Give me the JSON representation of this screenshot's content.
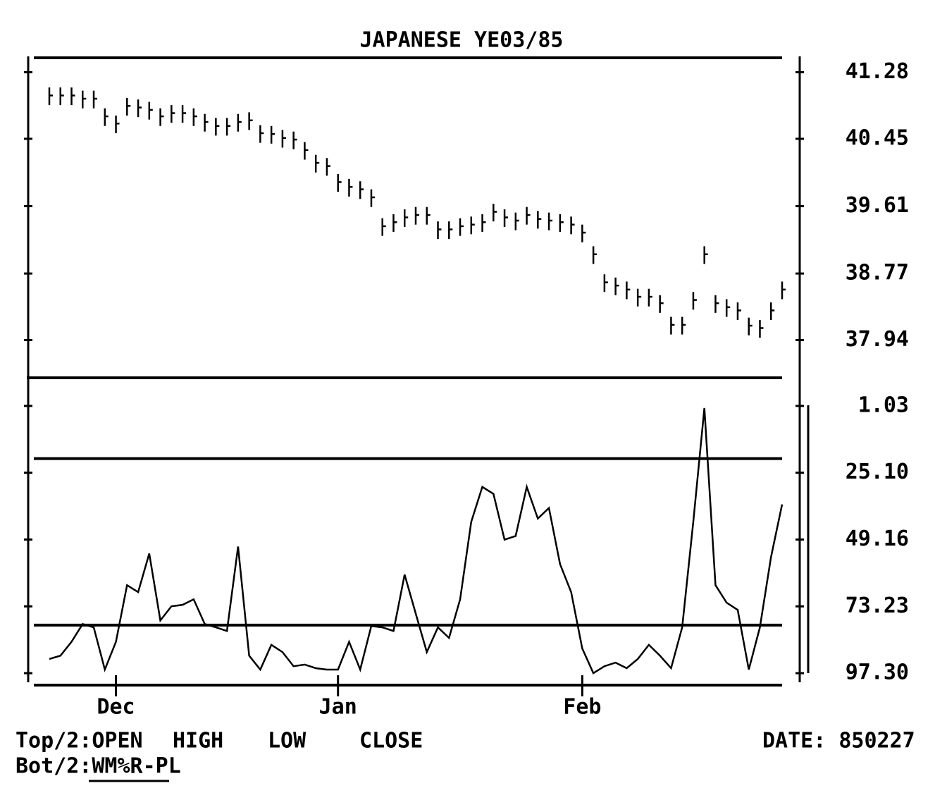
{
  "chart_data": [
    {
      "type": "hlc",
      "title": "JAPANESE YE03/85",
      "ylim": [
        37.47,
        41.46
      ],
      "yticks": [
        41.28,
        40.45,
        39.61,
        38.77,
        37.94
      ],
      "color": "#000000",
      "series": [
        {
          "name": "HIGH",
          "values": [
            41.09,
            41.09,
            41.09,
            41.05,
            41.05,
            40.83,
            40.74,
            40.96,
            40.94,
            40.91,
            40.83,
            40.87,
            40.87,
            40.83,
            40.76,
            40.71,
            40.71,
            40.76,
            40.78,
            40.62,
            40.61,
            40.56,
            40.54,
            40.41,
            40.25,
            40.21,
            40.01,
            39.95,
            39.92,
            39.82,
            39.46,
            39.51,
            39.57,
            39.6,
            39.6,
            39.42,
            39.42,
            39.46,
            39.48,
            39.51,
            39.64,
            39.57,
            39.53,
            39.6,
            39.55,
            39.53,
            39.51,
            39.48,
            39.38,
            39.11,
            38.76,
            38.72,
            38.67,
            38.58,
            38.58,
            38.5,
            38.23,
            38.23,
            38.54,
            39.11,
            38.5,
            38.45,
            38.41,
            38.22,
            38.19,
            38.41,
            38.67
          ]
        },
        {
          "name": "LOW",
          "values": [
            40.87,
            40.87,
            40.87,
            40.83,
            40.83,
            40.61,
            40.52,
            40.74,
            40.72,
            40.69,
            40.61,
            40.65,
            40.65,
            40.61,
            40.54,
            40.49,
            40.49,
            40.54,
            40.56,
            40.4,
            40.39,
            40.34,
            40.32,
            40.19,
            40.03,
            39.99,
            39.79,
            39.73,
            39.7,
            39.6,
            39.24,
            39.29,
            39.35,
            39.38,
            39.38,
            39.2,
            39.2,
            39.24,
            39.26,
            39.29,
            39.42,
            39.35,
            39.31,
            39.38,
            39.33,
            39.31,
            39.29,
            39.26,
            39.16,
            38.89,
            38.54,
            38.5,
            38.45,
            38.36,
            38.36,
            38.28,
            38.01,
            38.01,
            38.32,
            38.89,
            38.28,
            38.23,
            38.19,
            38.0,
            37.97,
            38.19,
            38.45
          ]
        },
        {
          "name": "CLOSE",
          "values": [
            40.99,
            40.99,
            40.99,
            40.95,
            40.95,
            40.73,
            40.64,
            40.86,
            40.84,
            40.81,
            40.73,
            40.77,
            40.77,
            40.73,
            40.66,
            40.61,
            40.61,
            40.66,
            40.68,
            40.52,
            40.51,
            40.46,
            40.44,
            40.31,
            40.15,
            40.11,
            39.91,
            39.85,
            39.82,
            39.72,
            39.36,
            39.41,
            39.47,
            39.5,
            39.5,
            39.32,
            39.32,
            39.36,
            39.38,
            39.41,
            39.54,
            39.47,
            39.43,
            39.5,
            39.45,
            39.43,
            39.41,
            39.38,
            39.28,
            39.01,
            38.66,
            38.62,
            38.57,
            38.48,
            38.48,
            38.4,
            38.13,
            38.13,
            38.44,
            39.01,
            38.4,
            38.35,
            38.31,
            38.12,
            38.09,
            38.31,
            38.57
          ]
        }
      ]
    },
    {
      "type": "line",
      "ylim": [
        -9.1,
        101.6
      ],
      "inverted": true,
      "yticks": [
        1.03,
        {
          "value": 25.1,
          "label": "25.10"
        },
        49.16,
        73.23,
        {
          "value": 97.3,
          "label": "97.30"
        }
      ],
      "hlines": [
        20,
        80
      ],
      "categories": [
        null,
        null,
        null,
        null,
        null,
        null,
        "Dec",
        null,
        null,
        null,
        null,
        null,
        null,
        null,
        null,
        null,
        null,
        null,
        null,
        null,
        null,
        null,
        null,
        null,
        null,
        null,
        "Jan",
        null,
        null,
        null,
        null,
        null,
        null,
        null,
        null,
        null,
        null,
        null,
        null,
        null,
        null,
        null,
        null,
        null,
        null,
        null,
        null,
        null,
        "Feb",
        null,
        null,
        null,
        null,
        null,
        null,
        null,
        null,
        null,
        null,
        null,
        null,
        null,
        null,
        null,
        null,
        null,
        null
      ],
      "series": [
        {
          "name": "WM%R-PL",
          "color": "#000000",
          "values": [
            92.2,
            91,
            86,
            79.6,
            80.8,
            96,
            86,
            65.6,
            68.1,
            54.2,
            78.3,
            73.2,
            72.7,
            70.7,
            79.6,
            80.8,
            82.1,
            51.7,
            91,
            96,
            87.1,
            89.7,
            94.8,
            94.2,
            95.5,
            96,
            96,
            86,
            96,
            80.3,
            80.8,
            82.1,
            61.8,
            75.8,
            89.7,
            80.8,
            84.6,
            70.7,
            42.8,
            30.2,
            32.7,
            49.2,
            47.9,
            30.2,
            41.6,
            37.8,
            58,
            68.1,
            88.4,
            97.3,
            94.8,
            93.5,
            95.5,
            92.2,
            87.1,
            91,
            95.5,
            80.8,
            42.8,
            1.8,
            65.6,
            71.9,
            74.5,
            96,
            80.8,
            55.5,
            36.5
          ]
        }
      ]
    }
  ],
  "footer": {
    "top_prefix": "Top/2:OPEN",
    "high": "HIGH",
    "low": "LOW",
    "close": "CLOSE",
    "date": "DATE: 850227",
    "bottom": "Bot/2:WM%R-PL"
  }
}
